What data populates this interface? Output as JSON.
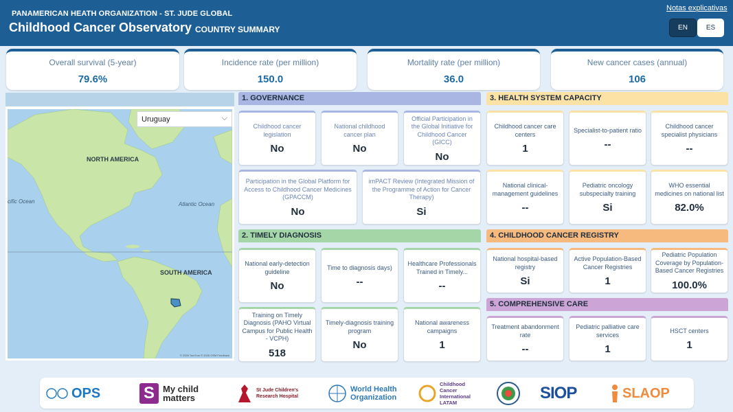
{
  "header": {
    "org": "PANAMERICAN HEATH ORGANIZATION - ST. JUDE GLOBAL",
    "title": "Childhood Cancer Observatory",
    "subtitle": "COUNTRY SUMMARY",
    "notes_link": "Notas explicativas",
    "lang_en": "EN",
    "lang_es": "ES"
  },
  "kpis": [
    {
      "label": "Overall survival (5-year)",
      "value": "79.6%"
    },
    {
      "label": "Incidence rate (per million)",
      "value": "150.0"
    },
    {
      "label": "Mortality rate (per million)",
      "value": "36.0"
    },
    {
      "label": "New cancer cases (annual)",
      "value": "106"
    }
  ],
  "map": {
    "selected_country": "Uruguay",
    "labels": {
      "north_america": "NORTH AMERICA",
      "south_america": "SOUTH AMERICA",
      "pacific": "cific Ocean",
      "atlantic": "Atlantic Ocean"
    },
    "credit": "© 2026 TomTom © 2026 OSM Feedback"
  },
  "sections": {
    "governance": {
      "title": "1. GOVERNANCE",
      "cards": [
        {
          "label": "Childhood cancer legislation",
          "value": "No"
        },
        {
          "label": "National childhood cancer plan",
          "value": "No"
        },
        {
          "label": "Official Participation in the Global Initiative for Childhood Cancer (GICC)",
          "value": "No"
        },
        {
          "label": "Participation in the Global Platform for Access to Childhood Cancer Medicines (GPACCM)",
          "value": "No"
        },
        {
          "label": "imPACT Review (Integrated Mission of the Programme of Action for Cancer Therapy)",
          "value": "Si"
        }
      ]
    },
    "health_system": {
      "title": "3. HEALTH SYSTEM CAPACITY",
      "cards": [
        {
          "label": "Childhood cancer care centers",
          "value": "1"
        },
        {
          "label": "Specialist-to-patient ratio",
          "value": "--"
        },
        {
          "label": "Childhood cancer specialist physicians",
          "value": "--"
        },
        {
          "label": "National clinical-management guidelines",
          "value": "--"
        },
        {
          "label": "Pediatric oncology subspecialty training",
          "value": "Si"
        },
        {
          "label": "WHO essential medicines on national list",
          "value": "82.0%"
        }
      ]
    },
    "timely_diagnosis": {
      "title": "2. TIMELY DIAGNOSIS",
      "cards": [
        {
          "label": "National early-detection guideline",
          "value": "No"
        },
        {
          "label": "Time to diagnosis days)",
          "value": "--"
        },
        {
          "label": "Healthcare Professionals Trained in Timely...",
          "value": "--"
        },
        {
          "label": "Training on Timely Diagnosis (PAHO Virtual Campus for Public Health - VCPH)",
          "value": "518"
        },
        {
          "label": "Timely-diagnosis training program",
          "value": "No"
        },
        {
          "label": "National awareness campaigns",
          "value": "1"
        }
      ]
    },
    "registry": {
      "title": "4. CHILDHOOD CANCER REGISTRY",
      "cards": [
        {
          "label": "National hospital-based registry",
          "value": "Si"
        },
        {
          "label": "Active Population-Based Cancer Registries",
          "value": "1"
        },
        {
          "label": "Pediatric Population Coverage by Population-Based Cancer Registries",
          "value": "100.0%"
        }
      ]
    },
    "comprehensive": {
      "title": "5. COMPREHENSIVE CARE",
      "cards": [
        {
          "label": "Treatment abandonment rate",
          "value": "--"
        },
        {
          "label": "Pediatric palliative care services",
          "value": "1"
        },
        {
          "label": "HSCT centers",
          "value": "1"
        }
      ]
    }
  },
  "footer": {
    "logos": [
      {
        "name": "ops-logo",
        "text": "OPS"
      },
      {
        "name": "my-child-matters-logo",
        "text": "My child matters"
      },
      {
        "name": "st-jude-logo",
        "text": "St Jude Children's Research Hospital"
      },
      {
        "name": "who-logo",
        "text": "World Health Organization"
      },
      {
        "name": "cci-logo",
        "text": "Childhood Cancer International LATAM"
      },
      {
        "name": "seal-logo",
        "text": ""
      },
      {
        "name": "siop-logo",
        "text": "SIOP"
      },
      {
        "name": "slaop-logo",
        "text": "SLAOP"
      }
    ]
  }
}
